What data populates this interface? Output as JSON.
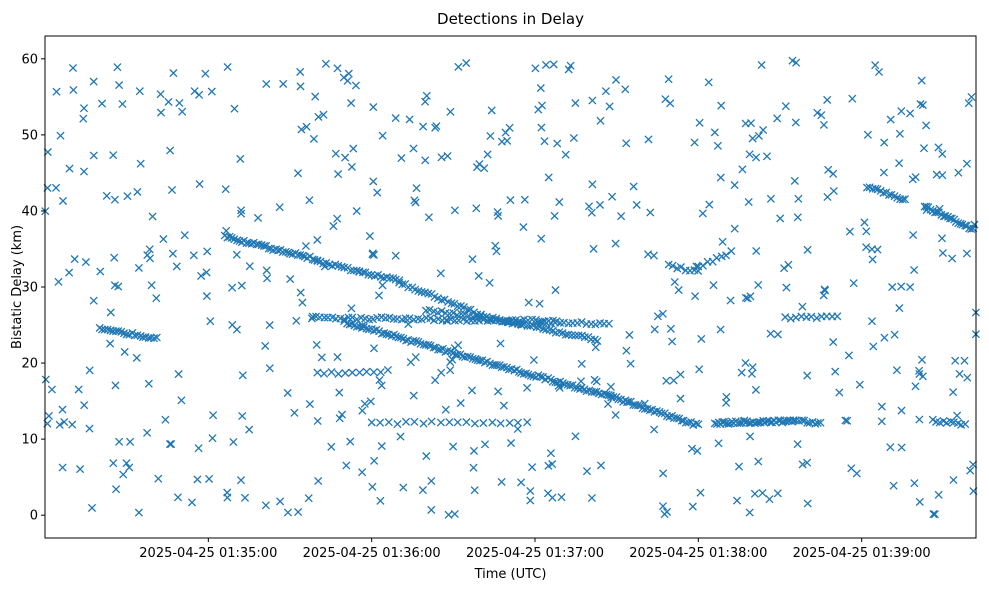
{
  "chart_data": {
    "type": "scatter",
    "title": "Detections in Delay",
    "xlabel": "Time (UTC)",
    "ylabel": "Bistatic Delay (km)",
    "x_unit": "seconds since 2025-04-25 01:34:00",
    "xlim": [
      0,
      342
    ],
    "ylim": [
      -3,
      63
    ],
    "marker": "x",
    "color": "#1f77b4",
    "xticks": [
      {
        "value": 60,
        "label": "2025-04-25 01:35:00"
      },
      {
        "value": 120,
        "label": "2025-04-25 01:36:00"
      },
      {
        "value": 180,
        "label": "2025-04-25 01:37:00"
      },
      {
        "value": 240,
        "label": "2025-04-25 01:38:00"
      },
      {
        "value": 300,
        "label": "2025-04-25 01:39:00"
      }
    ],
    "yticks": [
      {
        "value": 0,
        "label": "0"
      },
      {
        "value": 10,
        "label": "10"
      },
      {
        "value": 20,
        "label": "20"
      },
      {
        "value": 30,
        "label": "30"
      },
      {
        "value": 40,
        "label": "40"
      },
      {
        "value": 50,
        "label": "50"
      },
      {
        "value": 60,
        "label": "60"
      }
    ],
    "tracks": [
      {
        "name": "track-a",
        "x0": 20,
        "x1": 41,
        "y0": 24.6,
        "y1": 23.2,
        "step": 1.0
      },
      {
        "name": "track-b",
        "x0": 66,
        "x1": 100,
        "y0": 36.6,
        "y1": 33.6,
        "step": 0.9
      },
      {
        "name": "track-c",
        "x0": 100,
        "x1": 130,
        "y0": 33.4,
        "y1": 30.8,
        "step": 1.1
      },
      {
        "name": "track-d",
        "x0": 130,
        "x1": 160,
        "y0": 30.6,
        "y1": 26.4,
        "step": 1.2
      },
      {
        "name": "track-e",
        "x0": 160,
        "x1": 175,
        "y0": 26.2,
        "y1": 25.0,
        "step": 1.2
      },
      {
        "name": "track-f",
        "x0": 98,
        "x1": 188,
        "y0": 26.0,
        "y1": 25.5,
        "step": 1.5
      },
      {
        "name": "track-g",
        "x0": 140,
        "x1": 170,
        "y0": 27.0,
        "y1": 25.5,
        "step": 1.4
      },
      {
        "name": "track-h",
        "x0": 170,
        "x1": 203,
        "y0": 25.5,
        "y1": 23.0,
        "step": 1.2
      },
      {
        "name": "track-i",
        "x0": 110,
        "x1": 158,
        "y0": 25.4,
        "y1": 20.5,
        "step": 0.9
      },
      {
        "name": "track-j",
        "x0": 158,
        "x1": 208,
        "y0": 20.5,
        "y1": 15.6,
        "step": 0.9
      },
      {
        "name": "track-k",
        "x0": 208,
        "x1": 240,
        "y0": 15.6,
        "y1": 11.8,
        "step": 0.9
      },
      {
        "name": "track-l",
        "x0": 181,
        "x1": 207,
        "y0": 25.4,
        "y1": 25.2,
        "step": 1.6
      },
      {
        "name": "track-m",
        "x0": 229,
        "x1": 240,
        "y0": 32.8,
        "y1": 32.0,
        "step": 1.5
      },
      {
        "name": "track-n",
        "x0": 240,
        "x1": 252,
        "y0": 32.6,
        "y1": 34.6,
        "step": 1.8
      },
      {
        "name": "track-o",
        "x0": 246,
        "x1": 275,
        "y0": 12.1,
        "y1": 12.4,
        "step": 0.7
      },
      {
        "name": "track-p",
        "x0": 275,
        "x1": 285,
        "y0": 12.4,
        "y1": 12.1,
        "step": 1.0
      },
      {
        "name": "track-q",
        "x0": 120,
        "x1": 177,
        "y0": 12.1,
        "y1": 12.2,
        "step": 3.2
      },
      {
        "name": "track-r",
        "x0": 1,
        "x1": 10,
        "y0": 12.0,
        "y1": 12.0,
        "step": 4.0
      },
      {
        "name": "track-s",
        "x0": 302,
        "x1": 316,
        "y0": 43.2,
        "y1": 41.4,
        "step": 1.0
      },
      {
        "name": "track-t",
        "x0": 323,
        "x1": 341,
        "y0": 40.6,
        "y1": 37.6,
        "step": 0.8
      },
      {
        "name": "track-u",
        "x0": 326,
        "x1": 338,
        "y0": 12.4,
        "y1": 12.0,
        "step": 1.3
      },
      {
        "name": "track-v",
        "x0": 100,
        "x1": 126,
        "y0": 18.6,
        "y1": 19.0,
        "step": 2.6
      },
      {
        "name": "track-w",
        "x0": 272,
        "x1": 291,
        "y0": 25.9,
        "y1": 26.2,
        "step": 2.0
      }
    ],
    "scatter_noise": {
      "count": 560,
      "seed": 1337,
      "x_range": [
        0,
        342
      ],
      "y_range": [
        0,
        60
      ]
    }
  }
}
